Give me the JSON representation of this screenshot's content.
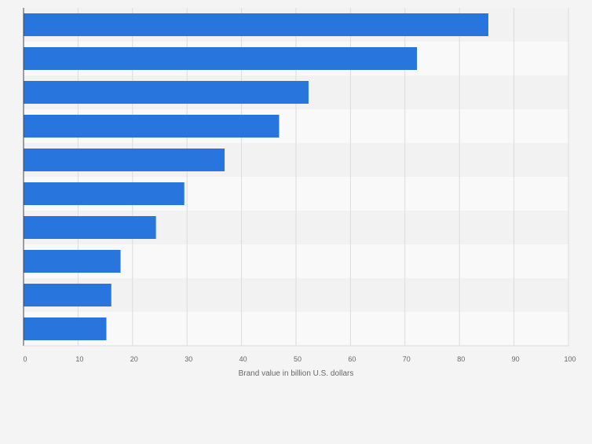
{
  "chart_data": {
    "type": "bar",
    "orientation": "horizontal",
    "title": "",
    "xlabel": "Brand value in billion U.S. dollars",
    "ylabel": "",
    "xlim": [
      0,
      100
    ],
    "ticks": [
      "0",
      "10",
      "20",
      "30",
      "40",
      "50",
      "60",
      "70",
      "80",
      "90",
      "100"
    ],
    "categories": [
      "",
      "",
      "",
      "",
      "",
      "",
      "",
      "",
      "",
      ""
    ],
    "values": [
      85.3,
      72.2,
      52.3,
      46.9,
      36.9,
      29.5,
      24.3,
      17.8,
      16.1,
      15.2
    ],
    "grid": true,
    "legend": "none",
    "colors": {
      "bar": "#2775dd",
      "band_light": "#f9f9f9",
      "band_dark": "#f2f2f2",
      "grid": "#dcdcdc",
      "axis": "#444444",
      "text": "#666666",
      "background": "#f4f4f4"
    }
  }
}
